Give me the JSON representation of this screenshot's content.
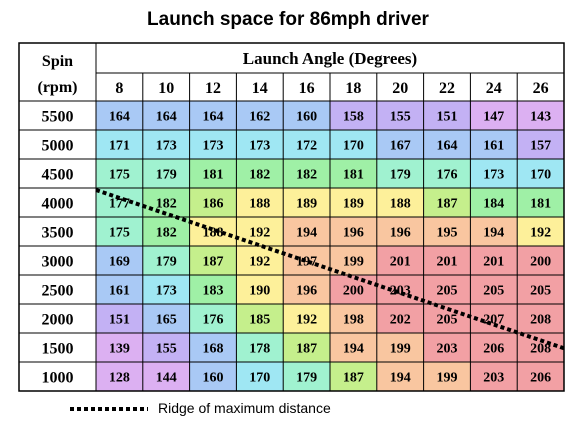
{
  "chart_data": {
    "type": "heatmap",
    "title": "Launch space for 86mph driver",
    "row_header_label": "Spin (rpm)",
    "row_header_line1": "Spin",
    "row_header_line2": "(rpm)",
    "column_group_label": "Launch Angle (Degrees)",
    "columns": [
      "8",
      "10",
      "12",
      "14",
      "16",
      "18",
      "20",
      "22",
      "24",
      "26"
    ],
    "rows": [
      "5500",
      "5000",
      "4500",
      "4000",
      "3500",
      "3000",
      "2500",
      "2000",
      "1500",
      "1000"
    ],
    "values": [
      [
        164,
        164,
        164,
        162,
        160,
        158,
        155,
        151,
        147,
        143
      ],
      [
        171,
        173,
        173,
        173,
        172,
        170,
        167,
        164,
        161,
        157
      ],
      [
        175,
        179,
        181,
        182,
        182,
        181,
        179,
        176,
        173,
        170
      ],
      [
        177,
        182,
        186,
        188,
        189,
        189,
        188,
        187,
        184,
        181
      ],
      [
        175,
        182,
        188,
        192,
        194,
        196,
        196,
        195,
        194,
        192
      ],
      [
        169,
        179,
        187,
        192,
        197,
        199,
        201,
        201,
        201,
        200
      ],
      [
        161,
        173,
        183,
        190,
        196,
        200,
        203,
        205,
        205,
        205
      ],
      [
        151,
        165,
        176,
        185,
        192,
        198,
        202,
        205,
        207,
        208
      ],
      [
        139,
        155,
        168,
        178,
        187,
        194,
        199,
        203,
        206,
        208
      ],
      [
        128,
        144,
        160,
        170,
        179,
        187,
        194,
        199,
        203,
        206
      ]
    ],
    "color_scale": [
      {
        "min": 200,
        "color": "#f2a0a4"
      },
      {
        "min": 194,
        "color": "#f9c6a0"
      },
      {
        "min": 188,
        "color": "#fdf09a"
      },
      {
        "min": 185,
        "color": "#c5ef8c"
      },
      {
        "min": 180,
        "color": "#9ff0a6"
      },
      {
        "min": 175,
        "color": "#a0f2d0"
      },
      {
        "min": 170,
        "color": "#9fe7f3"
      },
      {
        "min": 160,
        "color": "#a9c9f5"
      },
      {
        "min": 150,
        "color": "#c3b1f4"
      },
      {
        "min": 0,
        "color": "#dcb0f2"
      }
    ],
    "ridge_line": {
      "from": {
        "row": "4000",
        "col": "8"
      },
      "to": {
        "row": "1500",
        "col": "26"
      }
    },
    "legend": {
      "label": "Ridge of maximum distance",
      "style": "dotted"
    }
  }
}
